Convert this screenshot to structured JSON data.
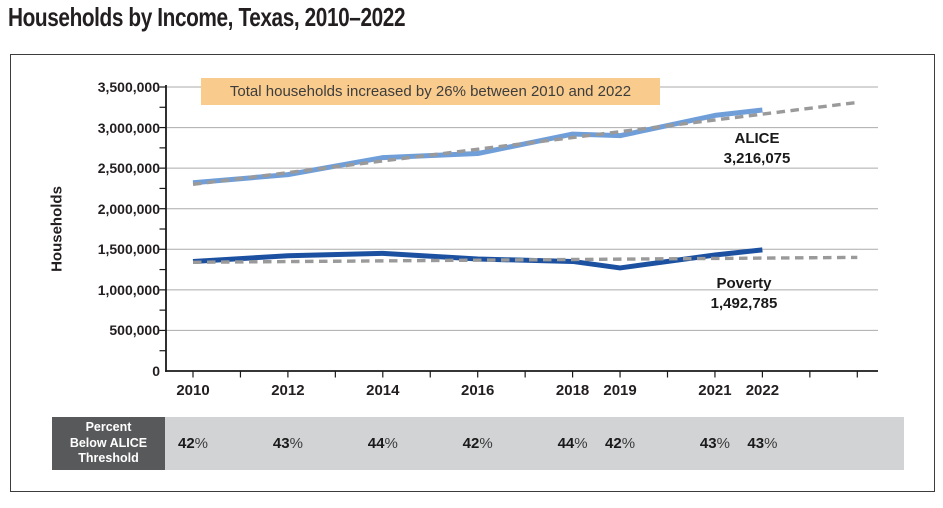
{
  "page_title": "Households by Income, Texas, 2010–2022",
  "ylabel": "Households",
  "annotation": {
    "text": "Total households increased by 26% between 2010 and 2022",
    "background": "#f9cb8d"
  },
  "series_end_labels": {
    "alice_name": "ALICE",
    "alice_value": "3,216,075",
    "poverty_name": "Poverty",
    "poverty_value": "1,492,785"
  },
  "table": {
    "header_lines": [
      "Percent",
      "Below ALICE",
      "Threshold"
    ],
    "suffix": "%",
    "cells": [
      {
        "year": 2010,
        "value": "42"
      },
      {
        "year": 2012,
        "value": "43"
      },
      {
        "year": 2014,
        "value": "44"
      },
      {
        "year": 2016,
        "value": "42"
      },
      {
        "year": 2018,
        "value": "44"
      },
      {
        "year": 2019,
        "value": "42"
      },
      {
        "year": 2021,
        "value": "43"
      },
      {
        "year": 2022,
        "value": "43"
      }
    ]
  },
  "colors": {
    "alice_line": "#6f9ed8",
    "poverty_line": "#1c51a1",
    "trend_line": "#9a9a9a",
    "gridline": "#ababab",
    "axis": "#1a1a1a",
    "annotation_bg": "#f9cb8d",
    "table_header_bg": "#58595b",
    "table_row_bg": "#d2d3d5",
    "title_text": "#231f20"
  },
  "chart_data": {
    "type": "line",
    "title": "Households by Income, Texas, 2010–2022",
    "xlabel": "",
    "ylabel": "Households",
    "x": [
      2010,
      2012,
      2014,
      2016,
      2018,
      2019,
      2021,
      2022
    ],
    "series": [
      {
        "name": "ALICE",
        "color": "#6f9ed8",
        "values": [
          2320000,
          2420000,
          2630000,
          2680000,
          2920000,
          2900000,
          3150000,
          3216075
        ]
      },
      {
        "name": "Poverty",
        "color": "#1c51a1",
        "values": [
          1350000,
          1420000,
          1450000,
          1380000,
          1350000,
          1270000,
          1430000,
          1492785
        ]
      }
    ],
    "trend_lines": [
      {
        "name": "ALICE trend",
        "x": [
          2010,
          2024
        ],
        "values": [
          2300000,
          3310000
        ]
      },
      {
        "name": "Poverty trend",
        "x": [
          2010,
          2024
        ],
        "values": [
          1340000,
          1400000
        ]
      }
    ],
    "ylim": [
      0,
      3500000
    ],
    "ytick_step": 500000,
    "yminor_step": 250000,
    "xaxis_tick_years": [
      2010,
      2011,
      2012,
      2013,
      2014,
      2015,
      2016,
      2017,
      2018,
      2019,
      2020,
      2021,
      2022,
      2023,
      2024
    ],
    "xtick_labels": [
      2010,
      2012,
      2014,
      2016,
      2018,
      2019,
      2021,
      2022
    ],
    "grid": "horizontal",
    "legend_position": "end-of-line labels",
    "annotation": "Total households increased by 26% between 2010 and 2022",
    "data_labels": {
      "ALICE": 3216075,
      "Poverty": 1492785
    },
    "percent_below_alice_threshold": {
      "years": [
        2010,
        2012,
        2014,
        2016,
        2018,
        2019,
        2021,
        2022
      ],
      "values": [
        "42%",
        "43%",
        "44%",
        "42%",
        "44%",
        "42%",
        "43%",
        "43%"
      ]
    }
  }
}
